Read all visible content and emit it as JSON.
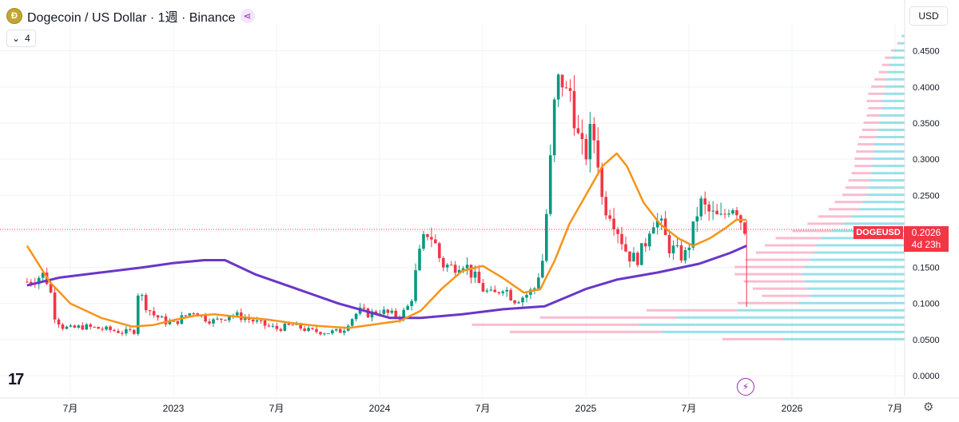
{
  "header": {
    "title": "Dogecoin / US Dollar · 1週 · Binance",
    "coin_symbol": "Ð",
    "indicator_count": "4",
    "indicator_chevron": "⌄",
    "currency": "USD",
    "share_icon": "share-icon"
  },
  "symbol_tag": "DOGEUSD",
  "price_tag": {
    "price": "0.2026",
    "countdown": "4d 23h"
  },
  "colors": {
    "up": "#089981",
    "down": "#f23645",
    "ma_fast": "#f7931a",
    "ma_slow": "#6a36c9",
    "vp_up": "#7fd8e3",
    "vp_down": "#f7a6bf"
  },
  "chart_data": {
    "type": "candlestick",
    "title": "Dogecoin / US Dollar · 1週 · Binance",
    "x_range": [
      2022.29,
      2026.56
    ],
    "ylim": [
      -0.02,
      0.49
    ],
    "y_ticks": [
      0,
      0.05,
      0.1,
      0.15,
      0.2,
      0.25,
      0.3,
      0.35,
      0.4,
      0.45
    ],
    "y_tick_labels": [
      "0.0000",
      "0.0500",
      "0.1000",
      "0.1500",
      "0.2000",
      "0.2500",
      "0.3000",
      "0.3500",
      "0.4000",
      "0.4500"
    ],
    "x_ticks": [
      {
        "t": 2022.5,
        "label": "7月"
      },
      {
        "t": 2023.0,
        "label": "2023"
      },
      {
        "t": 2023.5,
        "label": "7月"
      },
      {
        "t": 2024.0,
        "label": "2024"
      },
      {
        "t": 2024.5,
        "label": "7月"
      },
      {
        "t": 2025.0,
        "label": "2025"
      },
      {
        "t": 2025.5,
        "label": "7月"
      },
      {
        "t": 2026.0,
        "label": "2026"
      },
      {
        "t": 2026.5,
        "label": "7月"
      }
    ],
    "current_price": 0.2026,
    "price_anchors": [
      [
        2022.29,
        0.13
      ],
      [
        2022.33,
        0.135
      ],
      [
        2022.37,
        0.14
      ],
      [
        2022.4,
        0.125
      ],
      [
        2022.42,
        0.085
      ],
      [
        2022.46,
        0.068
      ],
      [
        2022.5,
        0.065
      ],
      [
        2022.56,
        0.068
      ],
      [
        2022.62,
        0.066
      ],
      [
        2022.7,
        0.063
      ],
      [
        2022.76,
        0.06
      ],
      [
        2022.81,
        0.062
      ],
      [
        2022.83,
        0.12
      ],
      [
        2022.86,
        0.1
      ],
      [
        2022.9,
        0.085
      ],
      [
        2022.96,
        0.075
      ],
      [
        2023.0,
        0.072
      ],
      [
        2023.05,
        0.082
      ],
      [
        2023.1,
        0.09
      ],
      [
        2023.15,
        0.08
      ],
      [
        2023.2,
        0.075
      ],
      [
        2023.28,
        0.085
      ],
      [
        2023.35,
        0.08
      ],
      [
        2023.42,
        0.072
      ],
      [
        2023.5,
        0.065
      ],
      [
        2023.58,
        0.07
      ],
      [
        2023.66,
        0.062
      ],
      [
        2023.75,
        0.06
      ],
      [
        2023.82,
        0.062
      ],
      [
        2023.85,
        0.075
      ],
      [
        2023.9,
        0.09
      ],
      [
        2023.95,
        0.085
      ],
      [
        2024.0,
        0.09
      ],
      [
        2024.05,
        0.085
      ],
      [
        2024.1,
        0.082
      ],
      [
        2024.15,
        0.1
      ],
      [
        2024.18,
        0.15
      ],
      [
        2024.2,
        0.175
      ],
      [
        2024.23,
        0.2
      ],
      [
        2024.26,
        0.19
      ],
      [
        2024.3,
        0.155
      ],
      [
        2024.35,
        0.15
      ],
      [
        2024.4,
        0.16
      ],
      [
        2024.45,
        0.14
      ],
      [
        2024.5,
        0.12
      ],
      [
        2024.55,
        0.11
      ],
      [
        2024.6,
        0.125
      ],
      [
        2024.65,
        0.105
      ],
      [
        2024.7,
        0.11
      ],
      [
        2024.75,
        0.12
      ],
      [
        2024.79,
        0.16
      ],
      [
        2024.82,
        0.26
      ],
      [
        2024.85,
        0.38
      ],
      [
        2024.88,
        0.42
      ],
      [
        2024.91,
        0.38
      ],
      [
        2024.93,
        0.4
      ],
      [
        2024.96,
        0.33
      ],
      [
        2024.99,
        0.3
      ],
      [
        2025.02,
        0.33
      ],
      [
        2025.05,
        0.33
      ],
      [
        2025.08,
        0.24
      ],
      [
        2025.12,
        0.23
      ],
      [
        2025.16,
        0.2
      ],
      [
        2025.2,
        0.17
      ],
      [
        2025.24,
        0.16
      ],
      [
        2025.28,
        0.175
      ],
      [
        2025.32,
        0.22
      ],
      [
        2025.36,
        0.21
      ],
      [
        2025.4,
        0.18
      ],
      [
        2025.44,
        0.17
      ],
      [
        2025.48,
        0.165
      ],
      [
        2025.52,
        0.2
      ],
      [
        2025.55,
        0.24
      ],
      [
        2025.58,
        0.23
      ],
      [
        2025.62,
        0.22
      ],
      [
        2025.66,
        0.215
      ],
      [
        2025.7,
        0.24
      ],
      [
        2025.73,
        0.235
      ],
      [
        2025.76,
        0.21
      ],
      [
        2025.78,
        0.2026
      ]
    ],
    "ma_fast": [
      [
        2022.29,
        0.18
      ],
      [
        2022.4,
        0.13
      ],
      [
        2022.5,
        0.1
      ],
      [
        2022.65,
        0.08
      ],
      [
        2022.8,
        0.068
      ],
      [
        2022.9,
        0.07
      ],
      [
        2023.0,
        0.077
      ],
      [
        2023.1,
        0.083
      ],
      [
        2023.2,
        0.085
      ],
      [
        2023.3,
        0.082
      ],
      [
        2023.45,
        0.078
      ],
      [
        2023.6,
        0.072
      ],
      [
        2023.7,
        0.069
      ],
      [
        2023.85,
        0.066
      ],
      [
        2024.0,
        0.072
      ],
      [
        2024.1,
        0.076
      ],
      [
        2024.2,
        0.09
      ],
      [
        2024.3,
        0.12
      ],
      [
        2024.4,
        0.145
      ],
      [
        2024.5,
        0.152
      ],
      [
        2024.6,
        0.135
      ],
      [
        2024.7,
        0.115
      ],
      [
        2024.78,
        0.12
      ],
      [
        2024.85,
        0.16
      ],
      [
        2024.92,
        0.21
      ],
      [
        2025.0,
        0.25
      ],
      [
        2025.08,
        0.29
      ],
      [
        2025.15,
        0.308
      ],
      [
        2025.2,
        0.29
      ],
      [
        2025.28,
        0.24
      ],
      [
        2025.36,
        0.21
      ],
      [
        2025.45,
        0.19
      ],
      [
        2025.52,
        0.18
      ],
      [
        2025.6,
        0.19
      ],
      [
        2025.68,
        0.205
      ],
      [
        2025.73,
        0.216
      ],
      [
        2025.78,
        0.216
      ]
    ],
    "ma_slow": [
      [
        2022.29,
        0.125
      ],
      [
        2022.45,
        0.136
      ],
      [
        2022.65,
        0.143
      ],
      [
        2022.85,
        0.15
      ],
      [
        2023.0,
        0.156
      ],
      [
        2023.15,
        0.16
      ],
      [
        2023.25,
        0.16
      ],
      [
        2023.4,
        0.14
      ],
      [
        2023.6,
        0.12
      ],
      [
        2023.8,
        0.1
      ],
      [
        2023.95,
        0.088
      ],
      [
        2024.05,
        0.08
      ],
      [
        2024.2,
        0.08
      ],
      [
        2024.4,
        0.085
      ],
      [
        2024.6,
        0.092
      ],
      [
        2024.8,
        0.096
      ],
      [
        2024.9,
        0.108
      ],
      [
        2025.0,
        0.12
      ],
      [
        2025.15,
        0.133
      ],
      [
        2025.35,
        0.143
      ],
      [
        2025.55,
        0.155
      ],
      [
        2025.7,
        0.17
      ],
      [
        2025.78,
        0.18
      ]
    ],
    "volume_profile": [
      [
        0.47,
        2,
        0
      ],
      [
        0.46,
        4,
        1
      ],
      [
        0.45,
        7,
        2
      ],
      [
        0.44,
        9,
        4
      ],
      [
        0.43,
        10,
        5
      ],
      [
        0.42,
        11,
        6
      ],
      [
        0.41,
        12,
        8
      ],
      [
        0.4,
        13,
        9
      ],
      [
        0.39,
        14,
        10
      ],
      [
        0.38,
        15,
        10
      ],
      [
        0.37,
        15,
        9
      ],
      [
        0.36,
        16,
        9
      ],
      [
        0.35,
        17,
        10
      ],
      [
        0.34,
        18,
        10
      ],
      [
        0.33,
        19,
        11
      ],
      [
        0.32,
        20,
        11
      ],
      [
        0.31,
        20,
        12
      ],
      [
        0.3,
        21,
        12
      ],
      [
        0.29,
        21,
        12
      ],
      [
        0.28,
        22,
        13
      ],
      [
        0.27,
        23,
        14
      ],
      [
        0.26,
        24,
        15
      ],
      [
        0.25,
        25,
        16
      ],
      [
        0.24,
        28,
        18
      ],
      [
        0.23,
        30,
        20
      ],
      [
        0.22,
        35,
        22
      ],
      [
        0.21,
        40,
        24
      ],
      [
        0.2,
        48,
        26
      ],
      [
        0.19,
        55,
        30
      ],
      [
        0.18,
        58,
        34
      ],
      [
        0.17,
        60,
        38
      ],
      [
        0.16,
        63,
        42
      ],
      [
        0.15,
        66,
        46
      ],
      [
        0.14,
        68,
        44
      ],
      [
        0.13,
        66,
        40
      ],
      [
        0.12,
        64,
        36
      ],
      [
        0.11,
        62,
        32
      ],
      [
        0.1,
        70,
        40
      ],
      [
        0.09,
        110,
        60
      ],
      [
        0.08,
        150,
        90
      ],
      [
        0.07,
        175,
        110
      ],
      [
        0.06,
        160,
        100
      ],
      [
        0.05,
        80,
        40
      ]
    ]
  }
}
